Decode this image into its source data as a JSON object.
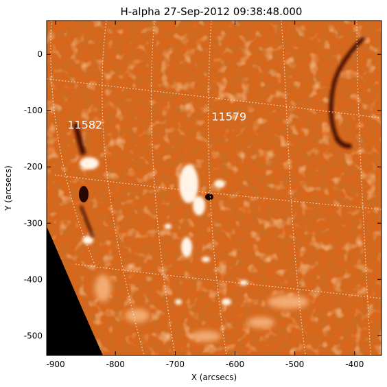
{
  "plot": {
    "title": "H-alpha 27-Sep-2012 09:38:48.000",
    "x_axis": {
      "label": "X (arcsecs)",
      "range": [
        -915,
        -355
      ],
      "ticks": [
        -900,
        -800,
        -700,
        -600,
        -500,
        -400
      ],
      "tick_labels": [
        "-900",
        "-800",
        "-700",
        "-600",
        "-500",
        "-400"
      ]
    },
    "y_axis": {
      "label": "Y (arcsecs)",
      "range": [
        -535,
        60
      ],
      "ticks": [
        0,
        -100,
        -200,
        -300,
        -400,
        -500
      ],
      "tick_labels": [
        "0",
        "-100",
        "-200",
        "-300",
        "-400",
        "-500"
      ]
    },
    "regions": [
      {
        "name": "region-11582",
        "label": "11582",
        "x": -851,
        "y": -125
      },
      {
        "name": "region-11579",
        "label": "11579",
        "x": -610,
        "y": -110
      }
    ],
    "colors": {
      "disk_base": "#d9661b",
      "disk_dark": "#8a2a05",
      "plage": "#fff4e6",
      "space": "#000000",
      "grid": "#ffe9d6",
      "frame": "#000000"
    },
    "grid": true,
    "icons": {
      "filament": "dark-filament-shape",
      "sunspot": "sunspot-shape"
    }
  }
}
